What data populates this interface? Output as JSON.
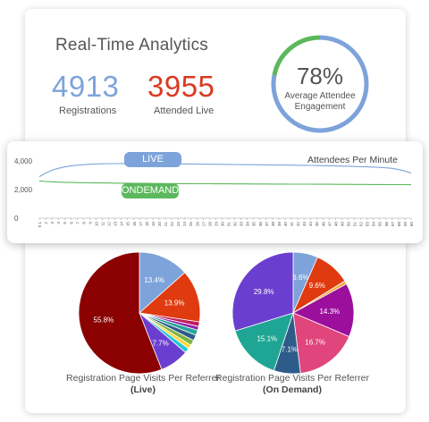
{
  "header": {
    "title": "Real-Time Analytics"
  },
  "stats": {
    "registrations": {
      "value": "4913",
      "label": "Registrations",
      "color": "#7da3da"
    },
    "attended": {
      "value": "3955",
      "label": "Attended Live",
      "color": "#d93a1f"
    }
  },
  "engagement": {
    "percent": 78,
    "percent_label": "78%",
    "label_line1": "Average Attendee",
    "label_line2": "Engagement",
    "ring_color": "#7da3da",
    "ring_accent": "#5cb85c",
    "ring_track": "#e6e6e6"
  },
  "chart_data": [
    {
      "type": "line",
      "title": "Attendees Per Minute",
      "yticks": [
        "4,000",
        "2,000",
        "0"
      ],
      "ylim": [
        0,
        4000
      ],
      "x": [
        "0 1",
        "2",
        "3",
        "4",
        "5",
        "6",
        "7",
        "8",
        "9",
        "10",
        "11",
        "12",
        "13",
        "14",
        "15",
        "16",
        "17",
        "18",
        "19",
        "20",
        "21",
        "22",
        "23",
        "24",
        "25",
        "26",
        "27",
        "28",
        "29",
        "30",
        "31",
        "32",
        "33",
        "34",
        "35",
        "36",
        "37",
        "38",
        "39",
        "40",
        "41",
        "42",
        "43",
        "44",
        "45",
        "46",
        "47",
        "48",
        "49",
        "50",
        "51",
        "52",
        "53",
        "54",
        "55",
        "56",
        "57",
        "58",
        "59",
        "60"
      ],
      "series": [
        {
          "name": "LIVE",
          "color": "#7da3da",
          "values": [
            2900,
            3150,
            3350,
            3480,
            3580,
            3650,
            3700,
            3740,
            3770,
            3790,
            3800,
            3810,
            3815,
            3820,
            3822,
            3820,
            3818,
            3815,
            3812,
            3808,
            3805,
            3800,
            3795,
            3790,
            3785,
            3780,
            3775,
            3770,
            3765,
            3760,
            3755,
            3750,
            3745,
            3740,
            3735,
            3730,
            3725,
            3720,
            3715,
            3710,
            3705,
            3700,
            3695,
            3690,
            3680,
            3670,
            3660,
            3650,
            3640,
            3630,
            3615,
            3600,
            3585,
            3570,
            3550,
            3520,
            3480,
            3400,
            3300,
            3150
          ]
        },
        {
          "name": "ONDEMAND",
          "color": "#5cb85c",
          "values": [
            2600,
            2560,
            2540,
            2520,
            2505,
            2495,
            2485,
            2478,
            2470,
            2465,
            2460,
            2455,
            2450,
            2446,
            2442,
            2438,
            2434,
            2430,
            2427,
            2424,
            2421,
            2418,
            2415,
            2412,
            2410,
            2408,
            2406,
            2404,
            2402,
            2400,
            2398,
            2396,
            2394,
            2392,
            2390,
            2388,
            2386,
            2384,
            2382,
            2380,
            2378,
            2376,
            2374,
            2372,
            2370,
            2368,
            2366,
            2364,
            2362,
            2360,
            2358,
            2356,
            2354,
            2352,
            2350,
            2348,
            2346,
            2344,
            2342,
            2340
          ]
        }
      ]
    },
    {
      "type": "pie",
      "title": "Registration Page Visits Per Referrer",
      "subtitle": "(Live)",
      "slices": [
        {
          "value": 13.4,
          "label": "13.4%",
          "color": "#7da3da"
        },
        {
          "value": 13.9,
          "label": "13.9%",
          "color": "#e03a10"
        },
        {
          "value": 1.2,
          "label": "",
          "color": "#c2185b"
        },
        {
          "value": 1.0,
          "label": "",
          "color": "#8e24aa"
        },
        {
          "value": 1.4,
          "label": "",
          "color": "#26a69a"
        },
        {
          "value": 1.5,
          "label": "",
          "color": "#2e5c8a"
        },
        {
          "value": 1.4,
          "label": "",
          "color": "#7cb342"
        },
        {
          "value": 1.1,
          "label": "",
          "color": "#fdd835"
        },
        {
          "value": 1.3,
          "label": "",
          "color": "#26c6da"
        },
        {
          "value": 7.7,
          "label": "7.7%",
          "color": "#6a3fd0"
        },
        {
          "value": 55.8,
          "label": "55.8%",
          "color": "#8b0000"
        }
      ]
    },
    {
      "type": "pie",
      "title": "Registration Page Visits Per Referrer",
      "subtitle": "(On Demand)",
      "slices": [
        {
          "value": 6.6,
          "label": "6.6%",
          "color": "#7da3da"
        },
        {
          "value": 9.6,
          "label": "9.6%",
          "color": "#e03a10"
        },
        {
          "value": 0.9,
          "label": "",
          "color": "#f4a93a"
        },
        {
          "value": 14.3,
          "label": "14.3%",
          "color": "#9c0f9c"
        },
        {
          "value": 16.7,
          "label": "16.7%",
          "color": "#e0457b"
        },
        {
          "value": 7.1,
          "label": "7.1%",
          "color": "#2e5c8a"
        },
        {
          "value": 15.1,
          "label": "15.1%",
          "color": "#1fa593"
        },
        {
          "value": 29.8,
          "label": "29.8%",
          "color": "#6a3fd0"
        }
      ]
    }
  ]
}
